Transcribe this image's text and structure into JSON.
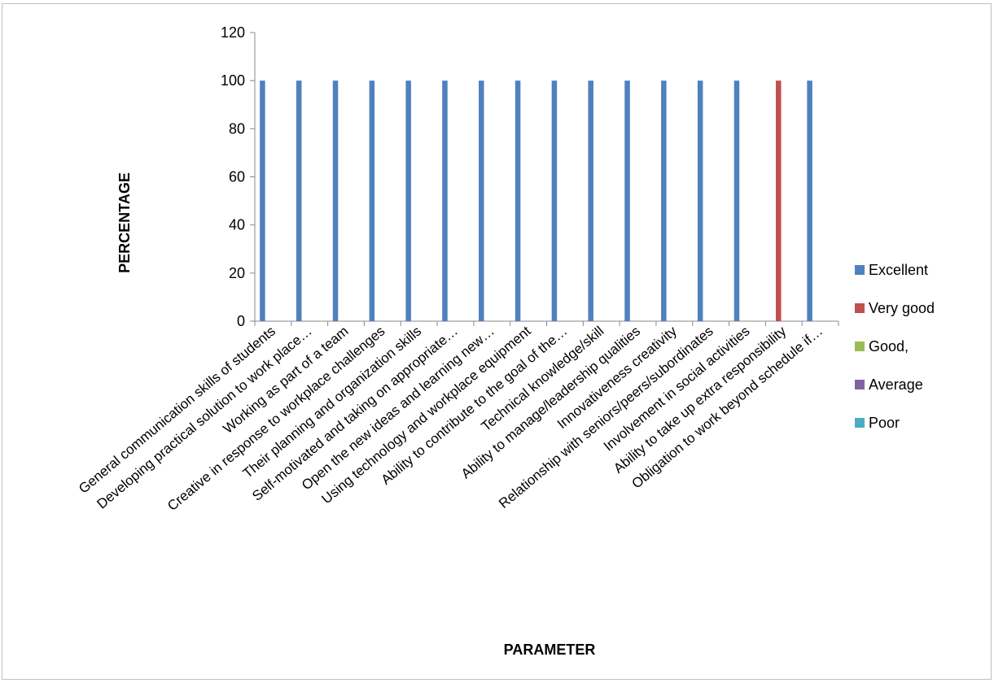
{
  "chart_data": {
    "type": "bar",
    "title": "",
    "xlabel": "PARAMETER",
    "ylabel": "PERCENTAGE",
    "ylim": [
      0,
      120
    ],
    "yticks": [
      0,
      20,
      40,
      60,
      80,
      100,
      120
    ],
    "grid": false,
    "legend_position": "right",
    "categories": [
      "General communication skills of students",
      "Developing practical solution to work place…",
      "Working as part of a team",
      "Creative in response to workplace challenges",
      "Their planning and organization skills",
      "Self-motivated and taking on appropriate…",
      "Open the new ideas and learning new…",
      "Using technology and workplace equipment",
      "Ability to contribute to the goal of the…",
      "Technical knowledge/skill",
      "Ability to manage/leadership qualities",
      "Innovativeness creativity",
      "Relationship with seniors/peers/subordinates",
      "Involvement in social activities",
      "Ability to take up extra responsibility",
      "Obligation to work beyond schedule if…"
    ],
    "series": [
      {
        "name": "Excellent",
        "color": "#4f81bd",
        "values": [
          100,
          100,
          100,
          100,
          100,
          100,
          100,
          100,
          100,
          100,
          100,
          100,
          100,
          100,
          0,
          100
        ]
      },
      {
        "name": "Very good",
        "color": "#c0504d",
        "values": [
          0,
          0,
          0,
          0,
          0,
          0,
          0,
          0,
          0,
          0,
          0,
          0,
          0,
          0,
          100,
          0
        ]
      },
      {
        "name": "Good,",
        "color": "#9bbb59",
        "values": [
          0,
          0,
          0,
          0,
          0,
          0,
          0,
          0,
          0,
          0,
          0,
          0,
          0,
          0,
          0,
          0
        ]
      },
      {
        "name": "Average",
        "color": "#8064a2",
        "values": [
          0,
          0,
          0,
          0,
          0,
          0,
          0,
          0,
          0,
          0,
          0,
          0,
          0,
          0,
          0,
          0
        ]
      },
      {
        "name": "Poor",
        "color": "#4bacc6",
        "values": [
          0,
          0,
          0,
          0,
          0,
          0,
          0,
          0,
          0,
          0,
          0,
          0,
          0,
          0,
          0,
          0
        ]
      }
    ]
  }
}
